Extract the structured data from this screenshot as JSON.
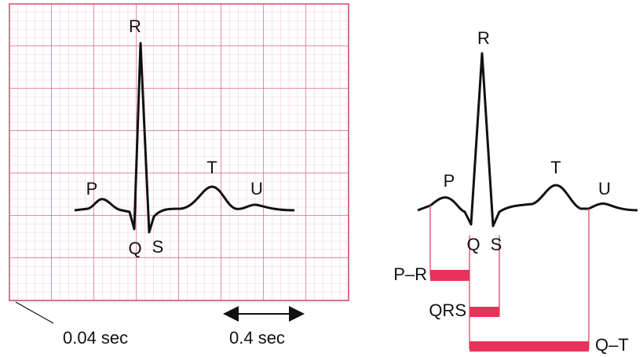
{
  "left_trace": {
    "labels": {
      "P": "P",
      "Q": "Q",
      "R": "R",
      "S": "S",
      "T": "T",
      "U": "U"
    },
    "scale": {
      "small_square": "0.04 sec",
      "large_span": "0.4 sec"
    }
  },
  "right_trace": {
    "labels": {
      "P": "P",
      "Q": "Q",
      "R": "R",
      "S": "S",
      "T": "T",
      "U": "U"
    },
    "intervals": {
      "pr": "P–R",
      "qrs": "QRS",
      "qt": "Q–T"
    }
  }
}
